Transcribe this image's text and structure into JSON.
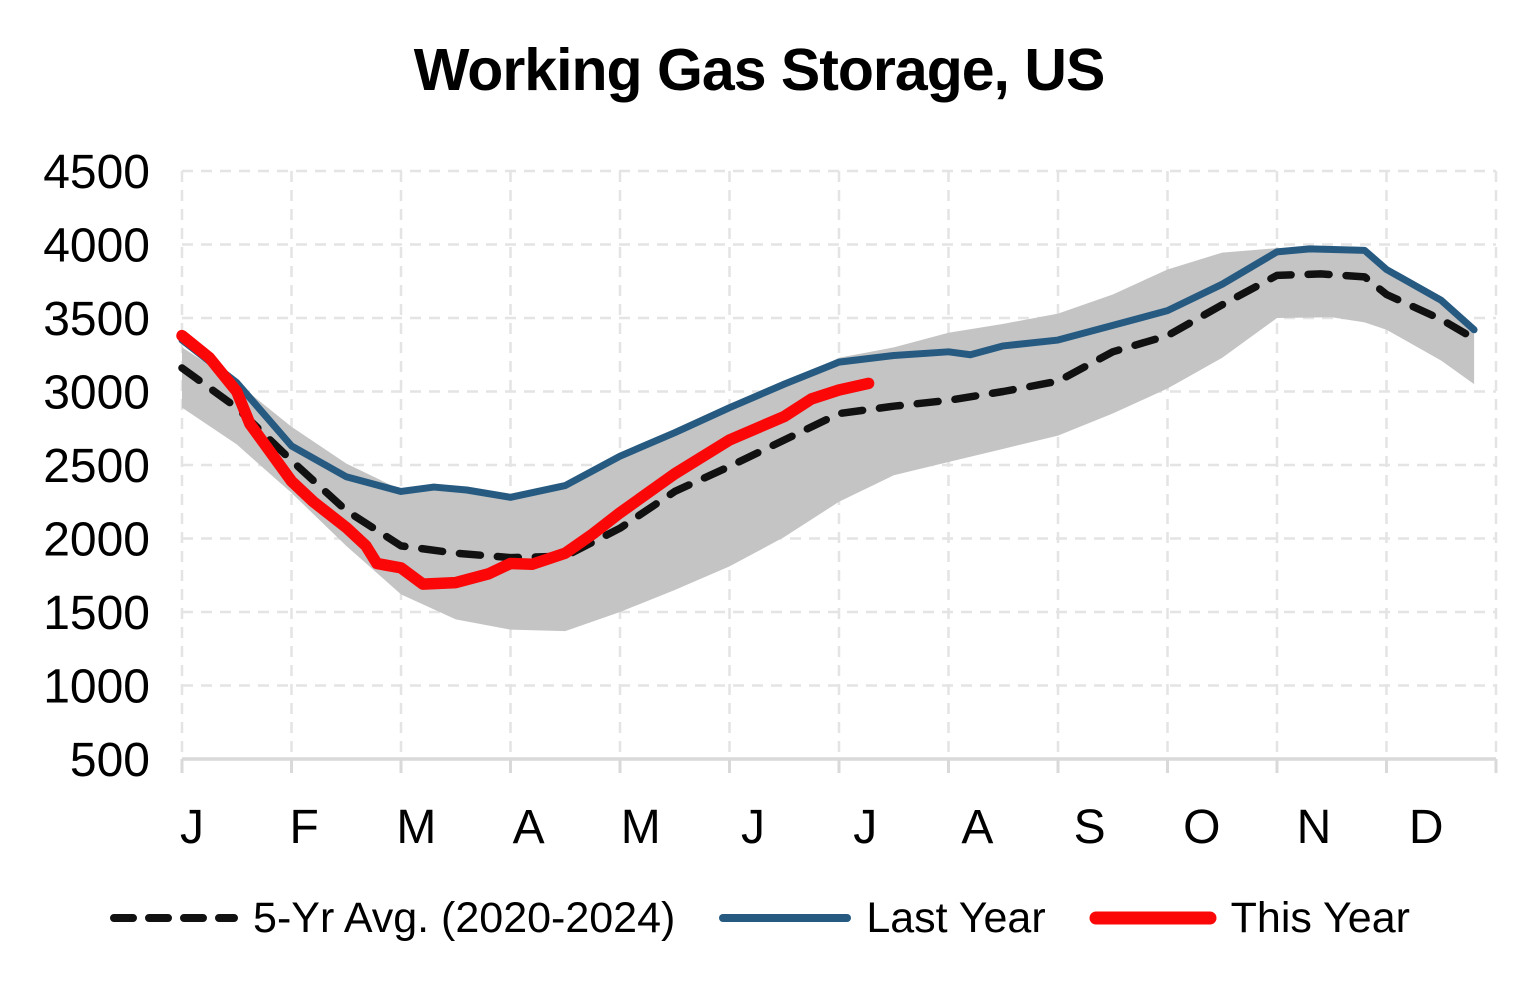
{
  "title": "Working Gas Storage, US",
  "chart_data": {
    "type": "line",
    "title": "Working Gas Storage, US",
    "x_unit": "months, 0 = Jan 1 through 12 = Dec 31",
    "x_tick_labels": [
      "J",
      "F",
      "M",
      "A",
      "M",
      "J",
      "J",
      "A",
      "S",
      "O",
      "N",
      "D"
    ],
    "y_ticks": [
      500,
      1000,
      1500,
      2000,
      2500,
      3000,
      3500,
      4000,
      4500
    ],
    "ylim": [
      500,
      4500
    ],
    "grid": true,
    "legend_position": "bottom",
    "colors": {
      "avg_line": "#111111",
      "last_year_line": "#275A81",
      "this_year_line": "#FB0707",
      "range_band": "#C4C4C4",
      "gridline": "#E4E4E4",
      "axis": "#D9D9D9"
    },
    "band": {
      "name": "5-yr range (2020-2024)",
      "points_x_lower_upper": [
        [
          0,
          2890,
          3300
        ],
        [
          0.5,
          2640,
          3060
        ],
        [
          1,
          2310,
          2760
        ],
        [
          1.5,
          1950,
          2510
        ],
        [
          2,
          1620,
          2330
        ],
        [
          2.5,
          1450,
          2340
        ],
        [
          3,
          1380,
          2290
        ],
        [
          3.5,
          1370,
          2360
        ],
        [
          4,
          1500,
          2560
        ],
        [
          4.5,
          1650,
          2720
        ],
        [
          5,
          1810,
          2890
        ],
        [
          5.5,
          2010,
          3050
        ],
        [
          6,
          2250,
          3230
        ],
        [
          6.5,
          2430,
          3300
        ],
        [
          7,
          2520,
          3400
        ],
        [
          7.5,
          2610,
          3460
        ],
        [
          8,
          2700,
          3530
        ],
        [
          8.5,
          2850,
          3660
        ],
        [
          9,
          3020,
          3830
        ],
        [
          9.5,
          3230,
          3945
        ],
        [
          10,
          3500,
          3975
        ],
        [
          10.5,
          3505,
          3980
        ],
        [
          10.8,
          3470,
          3965
        ],
        [
          11,
          3420,
          3835
        ],
        [
          11.5,
          3210,
          3625
        ],
        [
          11.8,
          3050,
          3425
        ]
      ]
    },
    "series": [
      {
        "name": "5-Yr Avg. (2020-2024)",
        "style": "dashed",
        "points": [
          [
            0,
            3160
          ],
          [
            0.5,
            2890
          ],
          [
            1,
            2530
          ],
          [
            1.5,
            2190
          ],
          [
            2,
            1950
          ],
          [
            2.5,
            1900
          ],
          [
            3,
            1870
          ],
          [
            3.5,
            1880
          ],
          [
            4,
            2070
          ],
          [
            4.5,
            2320
          ],
          [
            5,
            2490
          ],
          [
            5.5,
            2670
          ],
          [
            6,
            2850
          ],
          [
            6.5,
            2900
          ],
          [
            7,
            2940
          ],
          [
            7.5,
            3000
          ],
          [
            8,
            3070
          ],
          [
            8.5,
            3270
          ],
          [
            9,
            3380
          ],
          [
            9.5,
            3590
          ],
          [
            10,
            3790
          ],
          [
            10.4,
            3800
          ],
          [
            10.8,
            3780
          ],
          [
            11,
            3660
          ],
          [
            11.5,
            3490
          ],
          [
            11.8,
            3360
          ]
        ]
      },
      {
        "name": "Last Year",
        "style": "solid",
        "points": [
          [
            0,
            3350
          ],
          [
            0.5,
            3060
          ],
          [
            1,
            2630
          ],
          [
            1.5,
            2420
          ],
          [
            2,
            2320
          ],
          [
            2.3,
            2350
          ],
          [
            2.6,
            2330
          ],
          [
            3,
            2280
          ],
          [
            3.5,
            2360
          ],
          [
            4,
            2560
          ],
          [
            4.5,
            2720
          ],
          [
            5,
            2890
          ],
          [
            5.5,
            3050
          ],
          [
            6,
            3200
          ],
          [
            6.5,
            3245
          ],
          [
            7,
            3270
          ],
          [
            7.2,
            3250
          ],
          [
            7.5,
            3310
          ],
          [
            8,
            3350
          ],
          [
            8.5,
            3450
          ],
          [
            9,
            3550
          ],
          [
            9.5,
            3730
          ],
          [
            10,
            3950
          ],
          [
            10.3,
            3970
          ],
          [
            10.8,
            3960
          ],
          [
            11,
            3830
          ],
          [
            11.5,
            3620
          ],
          [
            11.8,
            3420
          ]
        ]
      },
      {
        "name": "This Year",
        "style": "solid-thick",
        "points": [
          [
            0,
            3380
          ],
          [
            0.25,
            3230
          ],
          [
            0.5,
            3000
          ],
          [
            0.62,
            2780
          ],
          [
            1,
            2390
          ],
          [
            1.2,
            2250
          ],
          [
            1.5,
            2075
          ],
          [
            1.68,
            1950
          ],
          [
            1.78,
            1830
          ],
          [
            2,
            1800
          ],
          [
            2.2,
            1690
          ],
          [
            2.5,
            1700
          ],
          [
            2.8,
            1760
          ],
          [
            3,
            1830
          ],
          [
            3.2,
            1825
          ],
          [
            3.5,
            1900
          ],
          [
            3.75,
            2030
          ],
          [
            4,
            2175
          ],
          [
            4.5,
            2440
          ],
          [
            5,
            2670
          ],
          [
            5.5,
            2830
          ],
          [
            5.75,
            2950
          ],
          [
            6,
            3010
          ],
          [
            6.27,
            3055
          ]
        ]
      }
    ]
  },
  "legend": {
    "items": [
      {
        "label": "5-Yr Avg. (2020-2024)"
      },
      {
        "label": "Last Year"
      },
      {
        "label": "This Year"
      }
    ]
  }
}
